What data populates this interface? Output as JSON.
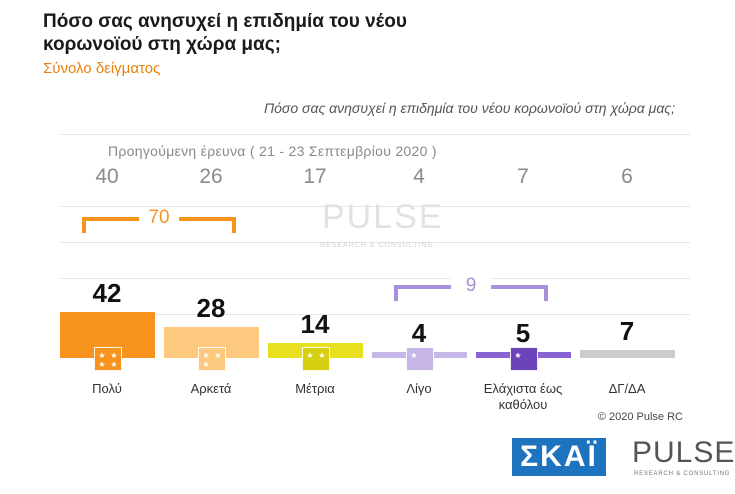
{
  "header": {
    "title": "Πόσο σας ανησυχεί η επιδημία του νέου κορωνοϊού στη χώρα μας;",
    "subtitle": "Σύνολο δείγματος"
  },
  "chart_data": {
    "type": "bar",
    "question": "Πόσο σας ανησυχεί η επιδημία του νέου κορωνοϊού στη χώρα μας;",
    "categories": [
      "Πολύ",
      "Αρκετά",
      "Μέτρια",
      "Λίγο",
      "Ελάχιστα έως καθόλου",
      "ΔΓ/ΔΑ"
    ],
    "values": [
      42,
      28,
      14,
      4,
      5,
      7
    ],
    "previous_label": "Προηγούμενη έρευνα  ( 21 - 23  Σεπτεμβρίου  2020 )",
    "previous_values": [
      40,
      26,
      17,
      4,
      7,
      6
    ],
    "groups": [
      {
        "label": "70",
        "from": 0,
        "to": 1,
        "color": "#f7941d"
      },
      {
        "label": "9",
        "from": 3,
        "to": 4,
        "color": "#a98fd9"
      }
    ],
    "colors": [
      "#f7941d",
      "#fcc97e",
      "#e8e01e",
      "#c6b7e8",
      "#8a63d2",
      "#cccccc"
    ],
    "grid": true
  },
  "watermark": {
    "brand": "PULSE",
    "tagline": "RESEARCH & CONSULTING"
  },
  "footer": {
    "copyright": "© 2020 Pulse RC",
    "logo_skai": "ΣΚΑΪ",
    "logo_pulse": "PULSE",
    "logo_pulse_sub": "RESEARCH & CONSULTING"
  }
}
